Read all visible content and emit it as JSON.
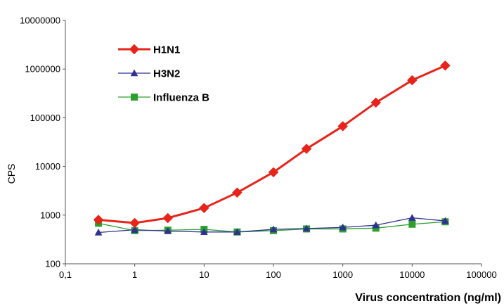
{
  "chart_data": {
    "type": "line",
    "title": "",
    "xlabel": "Virus concentration (ng/ml)",
    "ylabel": "CPS",
    "x_scale": "log",
    "y_scale": "log",
    "xlim": [
      0.1,
      100000
    ],
    "ylim": [
      100,
      10000000
    ],
    "grid": false,
    "legend_position": "top-left",
    "x_tick_values": [
      0.1,
      1,
      10,
      100,
      1000,
      10000,
      100000
    ],
    "x_tick_labels": [
      "0,1",
      "1",
      "10",
      "100",
      "1000",
      "10000",
      "100000"
    ],
    "y_tick_values": [
      100,
      1000,
      10000,
      100000,
      1000000,
      10000000
    ],
    "y_tick_labels": [
      "100",
      "1000",
      "10000",
      "100000",
      "1000000",
      "10000000"
    ],
    "x": [
      0.3,
      1,
      3,
      10,
      30,
      100,
      300,
      1000,
      3000,
      10000,
      30000
    ],
    "series": [
      {
        "name": "H1N1",
        "color": "#e8231a",
        "marker": "diamond",
        "values": [
          800,
          690,
          870,
          1400,
          2900,
          7600,
          23000,
          67000,
          205000,
          590000,
          1180000
        ]
      },
      {
        "name": "H3N2",
        "color": "#2e3192",
        "marker": "triangle",
        "values": [
          440,
          500,
          470,
          450,
          450,
          510,
          530,
          560,
          620,
          880,
          760
        ]
      },
      {
        "name": "Influenza B",
        "color": "#2ca02c",
        "marker": "square",
        "values": [
          680,
          480,
          490,
          510,
          450,
          480,
          520,
          520,
          540,
          650,
          730
        ]
      }
    ]
  }
}
